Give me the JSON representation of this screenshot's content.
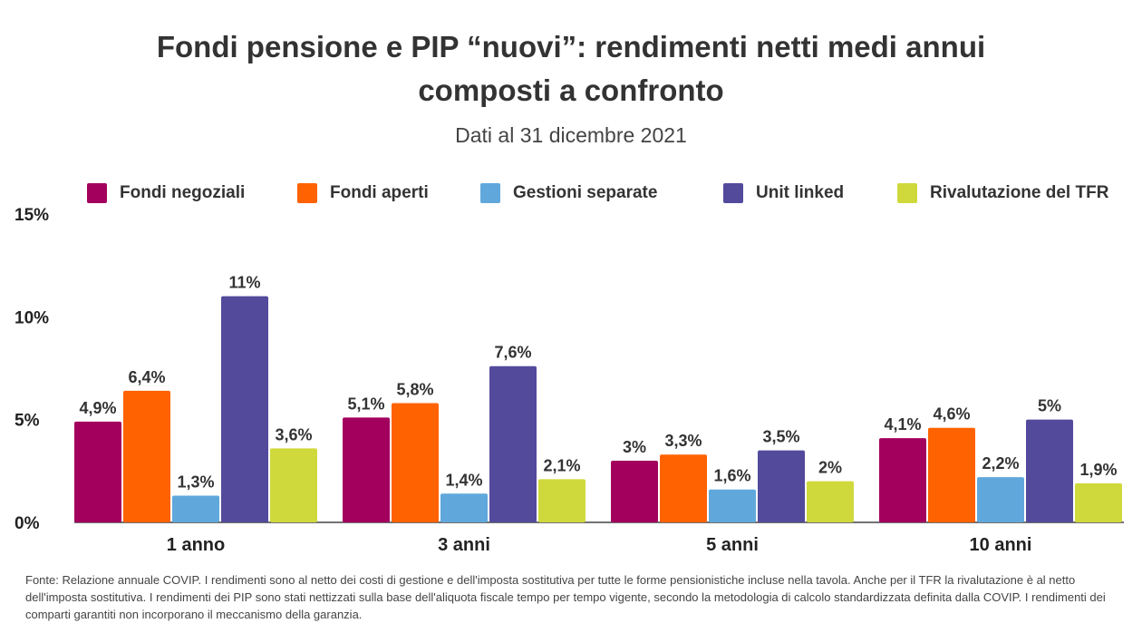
{
  "header": {
    "title_line1": "Fondi pensione e PIP “nuovi”: rendimenti netti medi annui",
    "title_line2": "composti a confronto",
    "subtitle": "Dati al 31 dicembre 2021"
  },
  "chart_data": {
    "type": "bar",
    "categories": [
      "1 anno",
      "3 anni",
      "5 anni",
      "10 anni"
    ],
    "series": [
      {
        "name": "Fondi negoziali",
        "color": "#a3005e",
        "values": [
          4.9,
          5.1,
          3.0,
          4.1
        ],
        "labels": [
          "4,9%",
          "5,1%",
          "3%",
          "4,1%"
        ]
      },
      {
        "name": "Fondi aperti",
        "color": "#ff6200",
        "values": [
          6.4,
          5.8,
          3.3,
          4.6
        ],
        "labels": [
          "6,4%",
          "5,8%",
          "3,3%",
          "4,6%"
        ]
      },
      {
        "name": "Gestioni separate",
        "color": "#60a8dc",
        "values": [
          1.3,
          1.4,
          1.6,
          2.2
        ],
        "labels": [
          "1,3%",
          "1,4%",
          "1,6%",
          "2,2%"
        ]
      },
      {
        "name": "Unit linked",
        "color": "#534a9c",
        "values": [
          11.0,
          7.6,
          3.5,
          5.0
        ],
        "labels": [
          "11%",
          "7,6%",
          "3,5%",
          "5%"
        ]
      },
      {
        "name": "Rivalutazione del TFR",
        "color": "#d0d93b",
        "values": [
          3.6,
          2.1,
          2.0,
          1.9
        ],
        "labels": [
          "3,6%",
          "2,1%",
          "2%",
          "1,9%"
        ]
      }
    ],
    "yticks": [
      0,
      5,
      10,
      15
    ],
    "ytick_labels": [
      "0%",
      "5%",
      "10%",
      "15%"
    ],
    "ylim": [
      0,
      15
    ],
    "legend_position": "top",
    "grid": false
  },
  "footnote": "Fonte: Relazione annuale COVIP. I rendimenti sono al netto dei costi di gestione e dell'imposta sostitutiva per tutte le forme pensionistiche incluse nella tavola. Anche per il TFR la rivalutazione è al netto dell'imposta sostitutiva. I rendimenti dei PIP sono stati nettizzati sulla base dell'aliquota fiscale tempo per tempo vigente, secondo la metodologia di calcolo standardizzata definita dalla COVIP. I rendimenti dei comparti garantiti non incorporano il meccanismo della garanzia."
}
